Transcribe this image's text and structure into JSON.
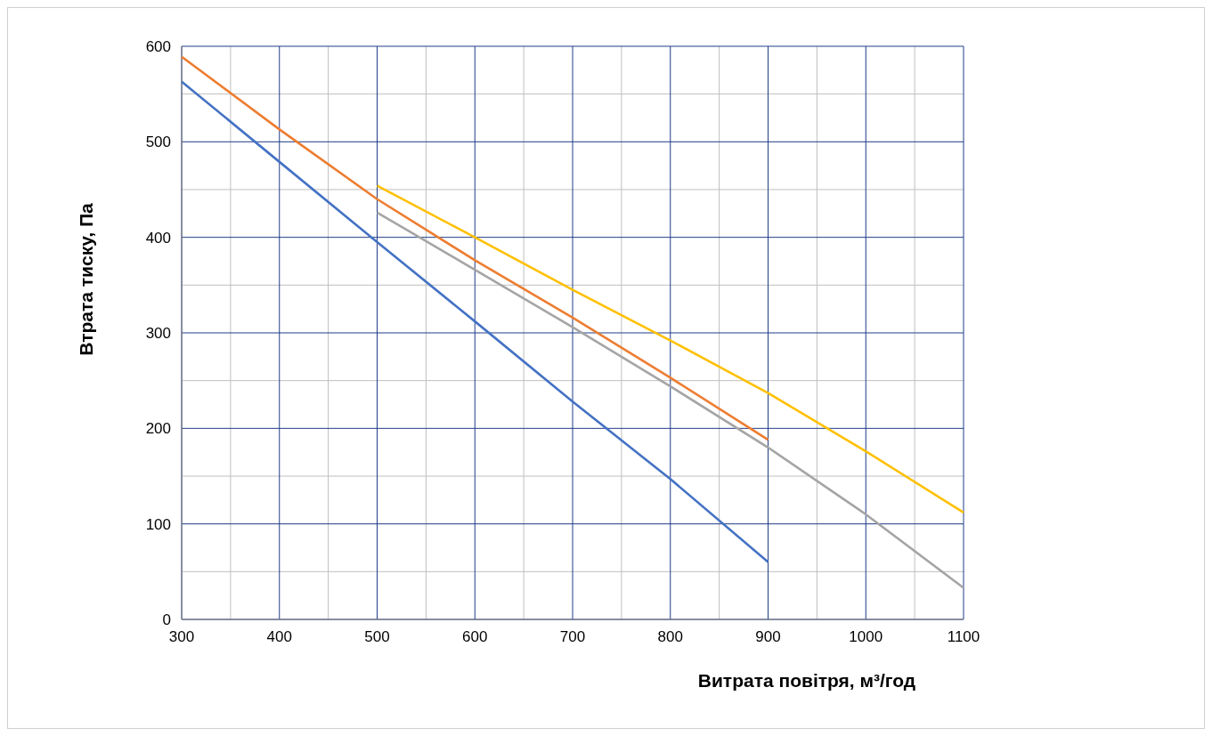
{
  "chart_data": {
    "type": "line",
    "xlabel": "Витрата повітря, м³/год",
    "ylabel": "Втрата тиску, Па",
    "x": [
      300,
      400,
      500,
      600,
      700,
      800,
      900,
      1000,
      1100
    ],
    "series": [
      {
        "color": "#4472c4",
        "values": [
          563,
          479,
          395,
          312,
          228,
          147,
          60,
          null,
          null
        ]
      },
      {
        "color": "#ed7d31",
        "values": [
          589,
          513,
          440,
          376,
          316,
          253,
          188,
          null,
          null
        ]
      },
      {
        "color": "#a5a5a5",
        "values": [
          null,
          null,
          426,
          366,
          306,
          244,
          180,
          110,
          33
        ]
      },
      {
        "color": "#ffc000",
        "values": [
          null,
          null,
          454,
          400,
          345,
          292,
          237,
          176,
          112
        ]
      }
    ],
    "xlim": [
      300,
      1100
    ],
    "xticks": [
      300,
      400,
      500,
      600,
      700,
      800,
      900,
      1000,
      1100
    ],
    "ylim": [
      0,
      600
    ],
    "yticks": [
      0,
      100,
      200,
      300,
      400,
      500,
      600
    ],
    "grid": true,
    "line_style": "solid",
    "marker": "none"
  }
}
